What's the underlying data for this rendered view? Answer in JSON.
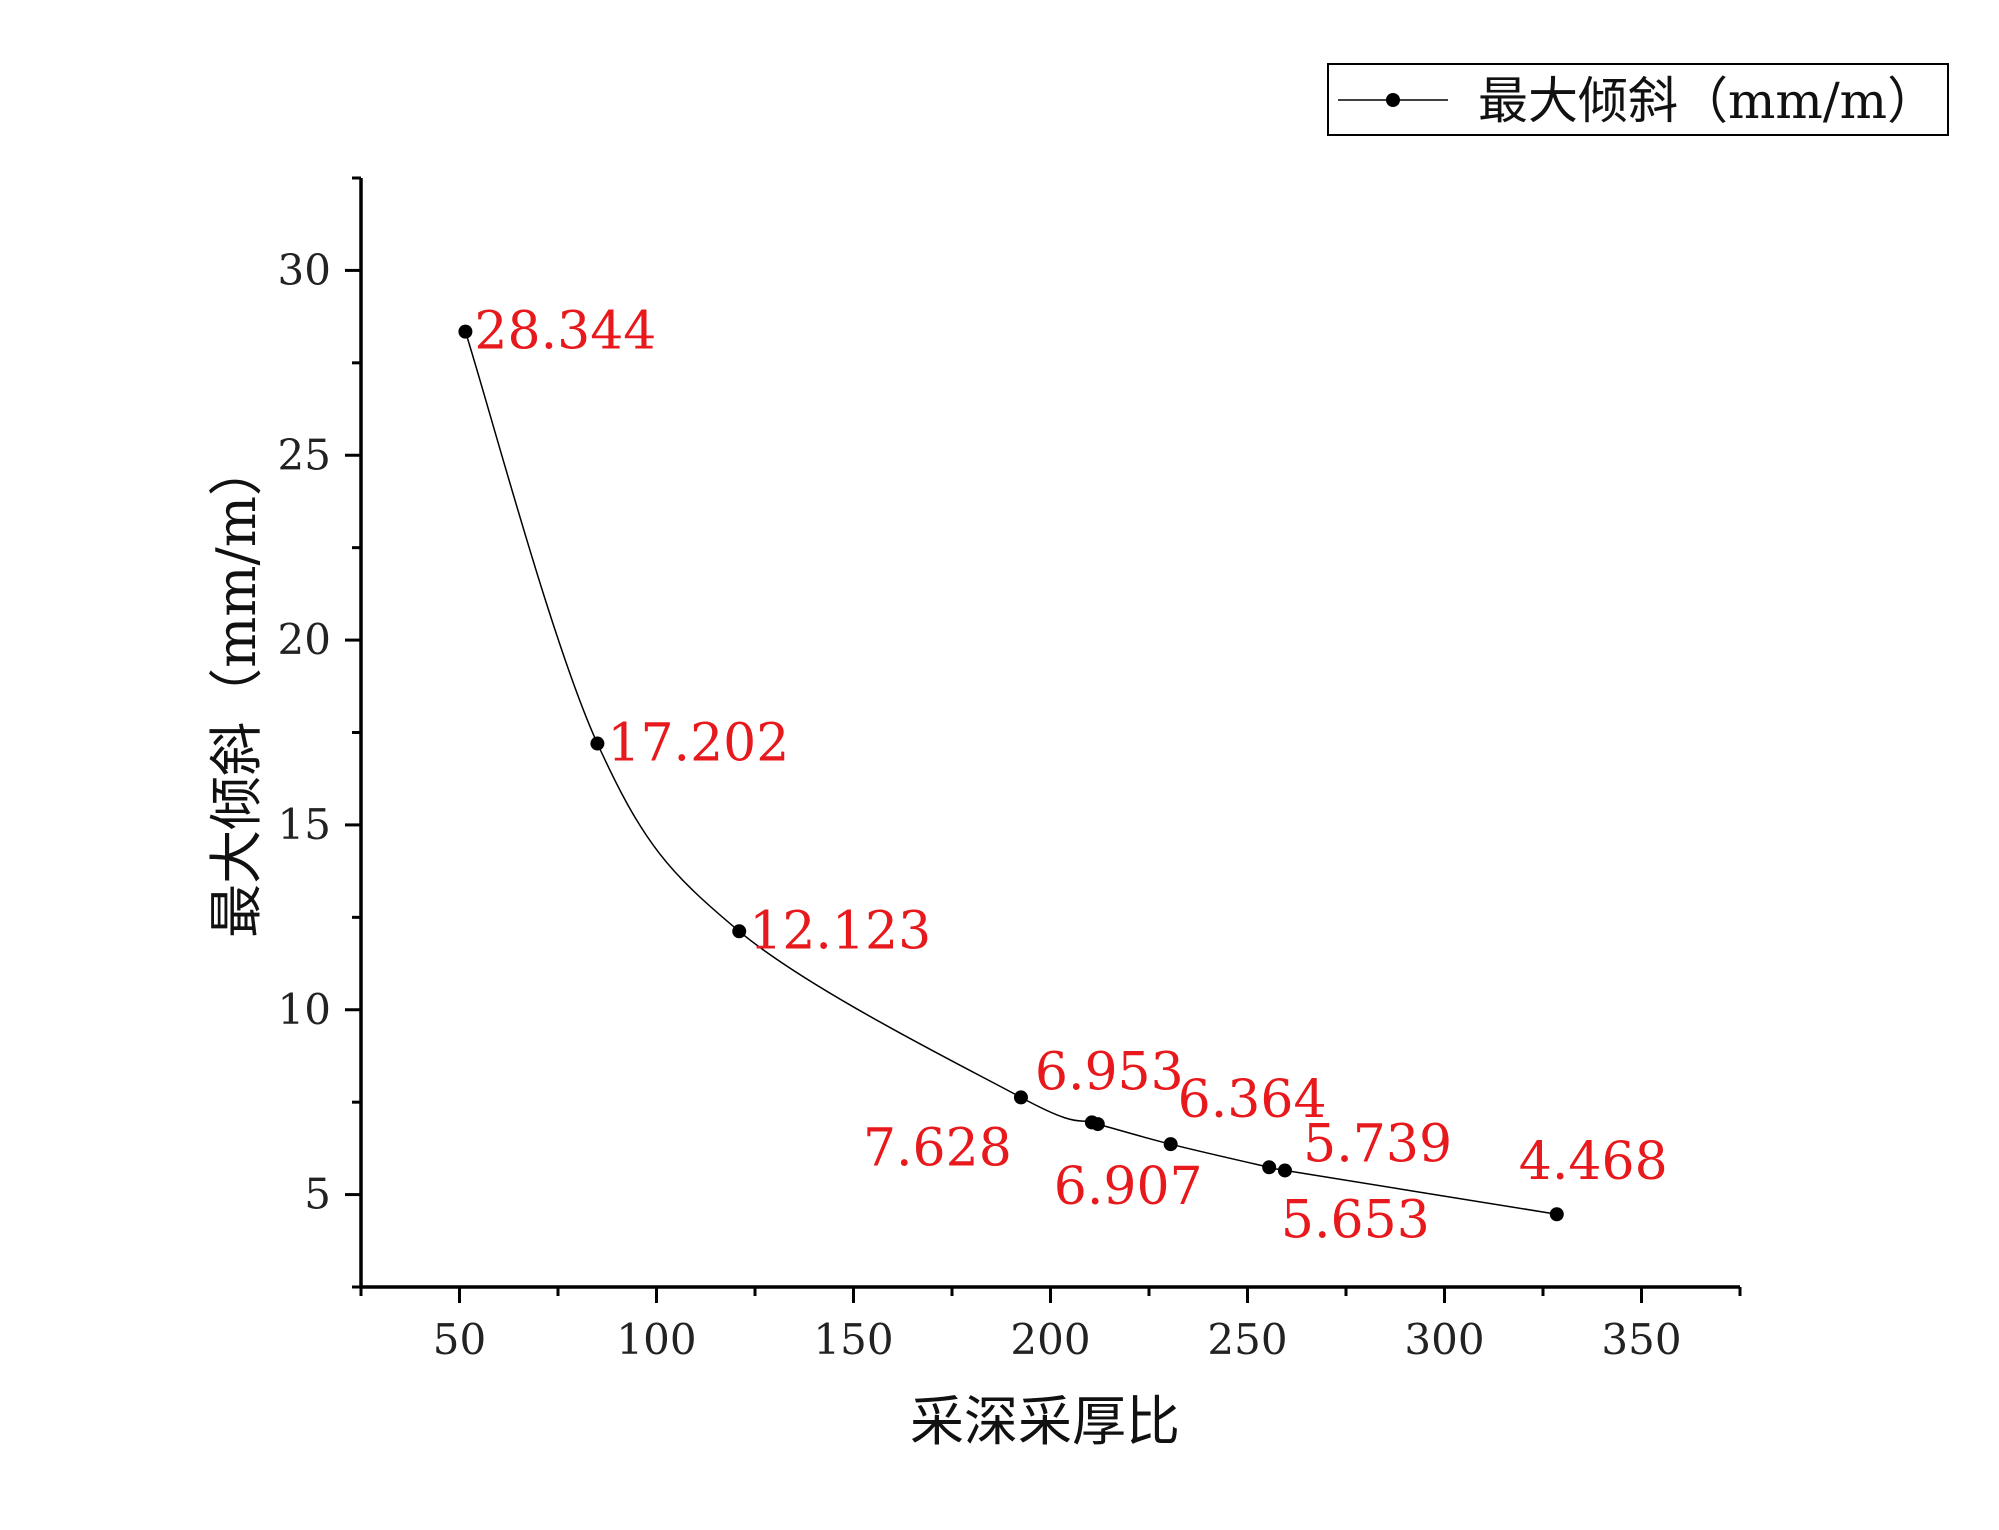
{
  "chart_data": {
    "type": "line",
    "xlabel": "采深采厚比",
    "ylabel": "最大倾斜（mm/m）",
    "xlim": [
      25,
      375
    ],
    "ylim": [
      2.5,
      32.5
    ],
    "x_ticks": [
      50,
      100,
      150,
      200,
      250,
      300,
      350
    ],
    "y_ticks": [
      5,
      10,
      15,
      20,
      25,
      30
    ],
    "x_tick_labels": [
      "50",
      "100",
      "150",
      "200",
      "250",
      "300",
      "350"
    ],
    "y_tick_labels": [
      "5",
      "10",
      "15",
      "20",
      "25",
      "30"
    ],
    "grid": false,
    "legend_position": "top-right",
    "colors": {
      "line": "#000000",
      "marker": "#000000",
      "labels": "#e8191c"
    },
    "series": [
      {
        "name": "最大倾斜（mm/m）",
        "x": [
          51.5,
          85,
          121,
          192.5,
          210.5,
          212,
          230.5,
          255.5,
          259.5,
          328.5
        ],
        "y": [
          28.344,
          17.202,
          12.123,
          7.628,
          6.953,
          6.907,
          6.364,
          5.739,
          5.653,
          4.468
        ],
        "labels": [
          "28.344",
          "17.202",
          "12.123",
          "7.628",
          "6.953",
          "6.907",
          "6.364",
          "5.739",
          "5.653",
          "4.468"
        ]
      }
    ]
  }
}
